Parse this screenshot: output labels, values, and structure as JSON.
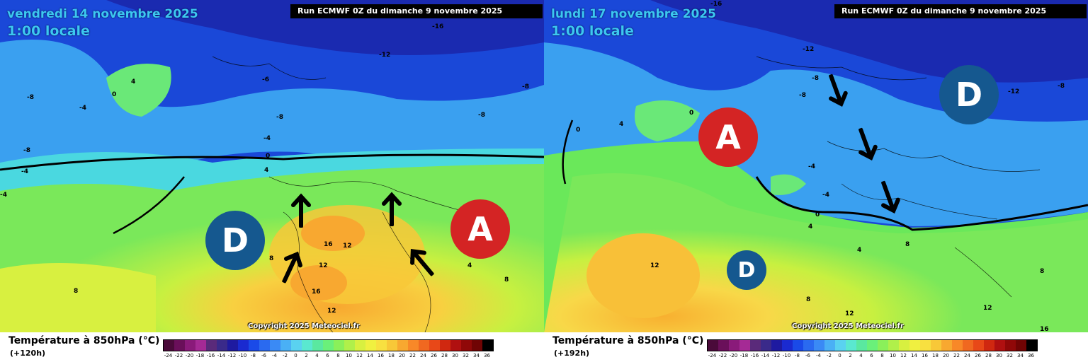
{
  "panels": [
    {
      "date": "vendredi 14 novembre 2025",
      "time": "1:00 locale",
      "run": "Run ECMWF 0Z du dimanche 9 novembre 2025",
      "legend_title": "Température à 850hPa (°C)",
      "lead_time": "(+120h)",
      "copyright": "Copyright 2025 Meteociel.fr",
      "systems": [
        {
          "label": "D",
          "type": "depression"
        },
        {
          "label": "A",
          "type": "anticyclone"
        }
      ]
    },
    {
      "date": "lundi 17 novembre 2025",
      "time": "1:00 locale",
      "run": "Run ECMWF 0Z du dimanche 9 novembre 2025",
      "legend_title": "Température à 850hPa (°C)",
      "lead_time": "(+192h)",
      "copyright": "Copyright 2025 Meteociel.fr",
      "systems": [
        {
          "label": "A",
          "type": "anticyclone"
        },
        {
          "label": "D",
          "type": "depression"
        },
        {
          "label": "D",
          "type": "depression"
        }
      ]
    }
  ],
  "scale": {
    "labels": [
      "-24",
      "-22",
      "-20",
      "-18",
      "-16",
      "-14",
      "-12",
      "-10",
      "-8",
      "-6",
      "-4",
      "-2",
      "0",
      "2",
      "4",
      "6",
      "8",
      "10",
      "12",
      "14",
      "16",
      "18",
      "20",
      "22",
      "24",
      "26",
      "28",
      "30",
      "32",
      "34",
      "36"
    ],
    "colors": [
      "#4a0a3a",
      "#6a0f5a",
      "#8a1a7a",
      "#a52a95",
      "#5a2a7a",
      "#3a2a8a",
      "#1e1aa0",
      "#1a2ad0",
      "#1a4ae8",
      "#2a6af0",
      "#3a8af5",
      "#4ab0f5",
      "#5ad2f0",
      "#5ae8d0",
      "#5ae8a0",
      "#6af07a",
      "#8af05a",
      "#b0f04a",
      "#d8f040",
      "#f0f040",
      "#f8e040",
      "#f8c838",
      "#f8a830",
      "#f88828",
      "#f06820",
      "#e84818",
      "#d02810",
      "#b01010",
      "#900808",
      "#700404",
      "#000000"
    ]
  },
  "map_labels": {
    "left": [
      "-16",
      "-12",
      "-8",
      "-8",
      "-8",
      "-8",
      "-4",
      "-4",
      "-4",
      "-4",
      "0",
      "0",
      "4",
      "4",
      "4",
      "8",
      "8",
      "8",
      "12",
      "12",
      "12",
      "16",
      "16",
      "-6",
      "-8"
    ],
    "right": [
      "-16",
      "-12",
      "-8",
      "-8",
      "-12",
      "-8",
      "-4",
      "-4",
      "0",
      "0",
      "0",
      "4",
      "4",
      "4",
      "8",
      "8",
      "8",
      "12",
      "12",
      "12",
      "16"
    ]
  }
}
